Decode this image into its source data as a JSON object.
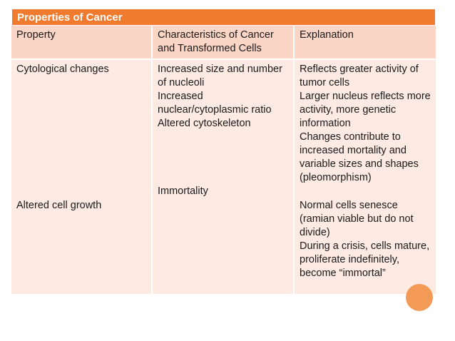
{
  "title": "Properties of Cancer",
  "columns": [
    "Property",
    "Characteristics of Cancer and Transformed Cells",
    "Explanation"
  ],
  "rows": {
    "col1": {
      "first": "Cytological changes",
      "second": "Altered cell growth"
    },
    "col2": {
      "first": "Increased size and number of nucleoli\nIncreased nuclear/cytoplasmic ratio\nAltered cytoskeleton",
      "second": "Immortality"
    },
    "col3": {
      "first": "Reflects greater activity of tumor cells\nLarger nucleus reflects more activity, more genetic information\nChanges contribute to increased mortality and variable sizes and shapes (pleomorphism)",
      "second": "Normal cells senesce (ramian viable but do not divide)\nDuring a crisis, cells mature, proliferate indefinitely, become “immortal”"
    }
  },
  "colors": {
    "title_bg": "#f07a2e",
    "header_bg": "#fbd5c5",
    "body_bg": "#fdeae3",
    "accent": "#f39a57"
  }
}
